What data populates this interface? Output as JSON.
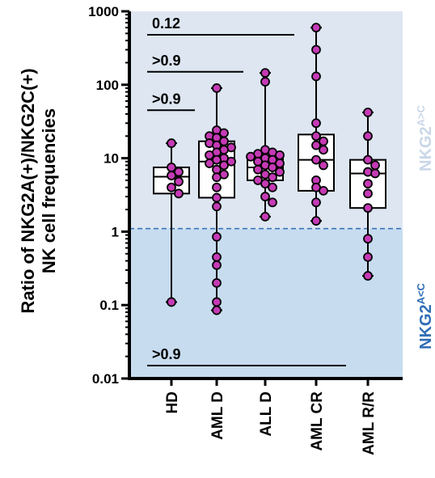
{
  "chart_data": {
    "type": "box-scatter",
    "title": "",
    "ylabel_lines": [
      "Ratio of NKG2A(+)/NKG2C(+)",
      "NK cell frequencies"
    ],
    "yscale": "log",
    "ylim": [
      0.01,
      1000
    ],
    "yticks": [
      "0.01",
      "0.1",
      "1",
      "10",
      "100",
      "1000"
    ],
    "threshold": 1.1,
    "zones": {
      "upper": {
        "base": "NKG2",
        "sup": "A>C",
        "color": "#dde6f1"
      },
      "lower": {
        "base": "NKG2",
        "sup": "A<C",
        "color": "#c7dcef"
      }
    },
    "categories": [
      "HD",
      "AML D",
      "ALL D",
      "AML CR",
      "AML R/R"
    ],
    "groups": [
      {
        "name": "HD",
        "min": 0.11,
        "q1": 3.3,
        "median": 5.6,
        "q3": 7.5,
        "max": 16,
        "points": [
          16,
          7.5,
          6.5,
          5.8,
          4.8,
          4.0,
          3.3,
          0.11
        ]
      },
      {
        "name": "AML D",
        "min": 0.085,
        "q1": 2.9,
        "median": 9.0,
        "q3": 17,
        "max": 90,
        "points": [
          90,
          24,
          22,
          20,
          19,
          17,
          16,
          15,
          14,
          13,
          12,
          11,
          10,
          9.5,
          9,
          8.5,
          8,
          7,
          6,
          5.5,
          4,
          2.9,
          2.2,
          0.85,
          0.45,
          0.35,
          0.2,
          0.11,
          0.085
        ]
      },
      {
        "name": "ALL D",
        "min": 1.6,
        "q1": 5.0,
        "median": 7.5,
        "q3": 10,
        "max": 145,
        "points": [
          145,
          110,
          13,
          12,
          11.5,
          11,
          10.5,
          10,
          9.5,
          9,
          8.5,
          8,
          7.5,
          7,
          6.5,
          6,
          5.5,
          5,
          4.5,
          4,
          3,
          2.5,
          1.6
        ]
      },
      {
        "name": "AML CR",
        "min": 1.4,
        "q1": 3.6,
        "median": 9.5,
        "q3": 21,
        "max": 600,
        "points": [
          600,
          300,
          130,
          30,
          20,
          17,
          15,
          13,
          9.5,
          8,
          5,
          4,
          3.6,
          2.5,
          1.4
        ]
      },
      {
        "name": "AML R/R",
        "min": 0.25,
        "q1": 2.1,
        "median": 6.2,
        "q3": 9.5,
        "max": 42,
        "points": [
          42,
          20,
          9.5,
          8,
          6.5,
          6.2,
          4.5,
          3.3,
          2.1,
          0.8,
          0.45,
          0.25
        ]
      }
    ],
    "annotations": [
      {
        "label": "0.12",
        "from": 0,
        "to": 3,
        "y": 480
      },
      {
        "label": ">0.9",
        "from": 0,
        "to": 2,
        "y": 150
      },
      {
        "label": ">0.9",
        "from": 0,
        "to": 1,
        "y": 45
      },
      {
        "label": ">0.9",
        "from": 0,
        "to": 4,
        "y": 0.015
      }
    ],
    "point_color": "#c53ab5"
  }
}
